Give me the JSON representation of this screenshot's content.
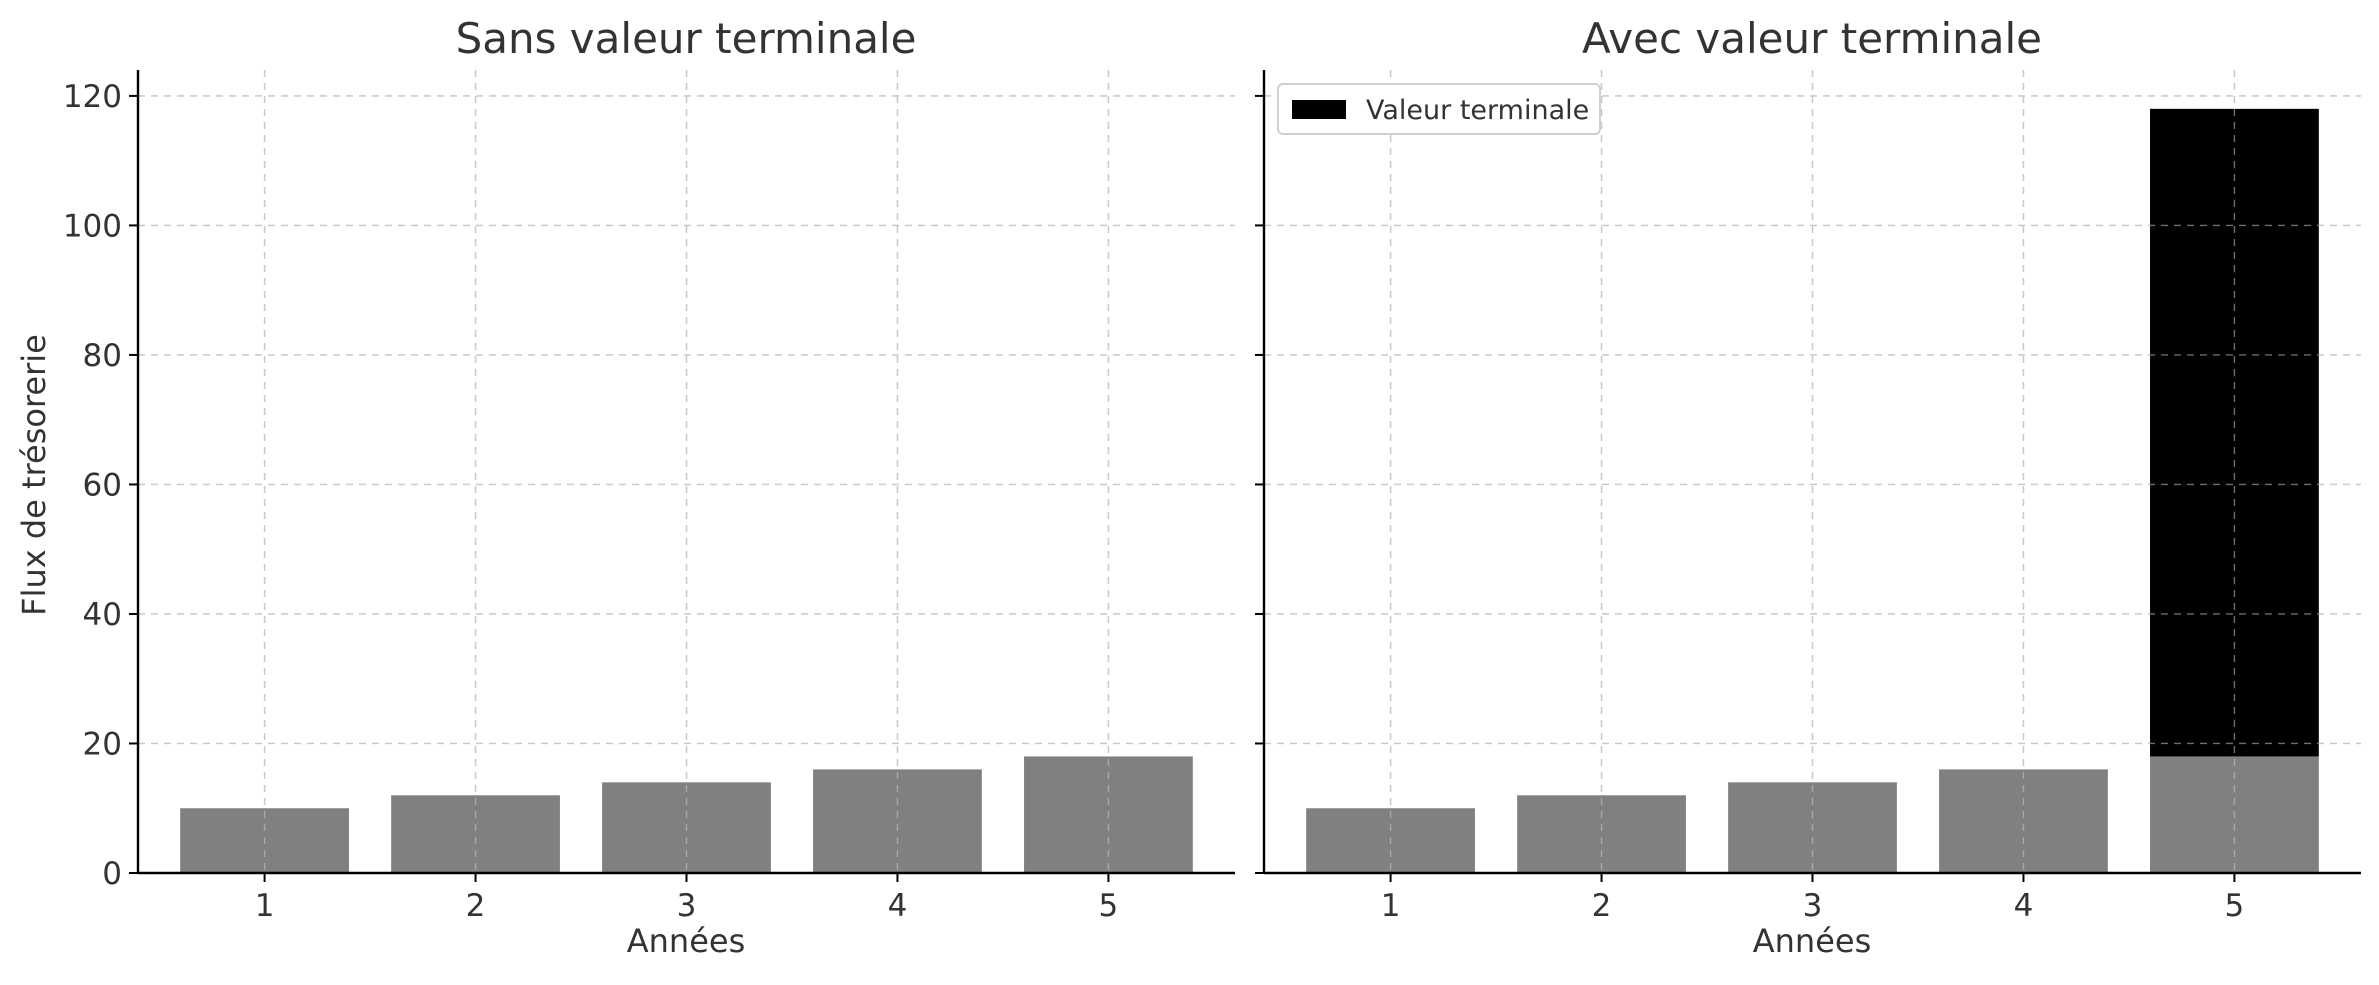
{
  "chart_data": [
    {
      "type": "bar",
      "title": "Sans valeur terminale",
      "xlabel": "Années",
      "ylabel": "Flux de trésorerie",
      "categories": [
        "1",
        "2",
        "3",
        "4",
        "5"
      ],
      "series": [
        {
          "values": [
            10,
            12,
            14,
            16,
            18
          ],
          "color": "#808080"
        }
      ],
      "ylim": [
        0,
        124
      ],
      "yticks": [
        "0",
        "20",
        "40",
        "60",
        "80",
        "100",
        "120"
      ],
      "grid": true
    },
    {
      "type": "bar",
      "stacked": true,
      "title": "Avec valeur terminale",
      "xlabel": "Années",
      "ylabel": "",
      "categories": [
        "1",
        "2",
        "3",
        "4",
        "5"
      ],
      "series": [
        {
          "values": [
            10,
            12,
            14,
            16,
            18
          ],
          "color": "#808080"
        },
        {
          "name": "Valeur terminale",
          "values": [
            0,
            0,
            0,
            0,
            100
          ],
          "color": "#000000"
        }
      ],
      "ylim": [
        0,
        124
      ],
      "yticks": [
        "0",
        "20",
        "40",
        "60",
        "80",
        "100",
        "120"
      ],
      "grid": true,
      "legend": "top-left"
    }
  ]
}
